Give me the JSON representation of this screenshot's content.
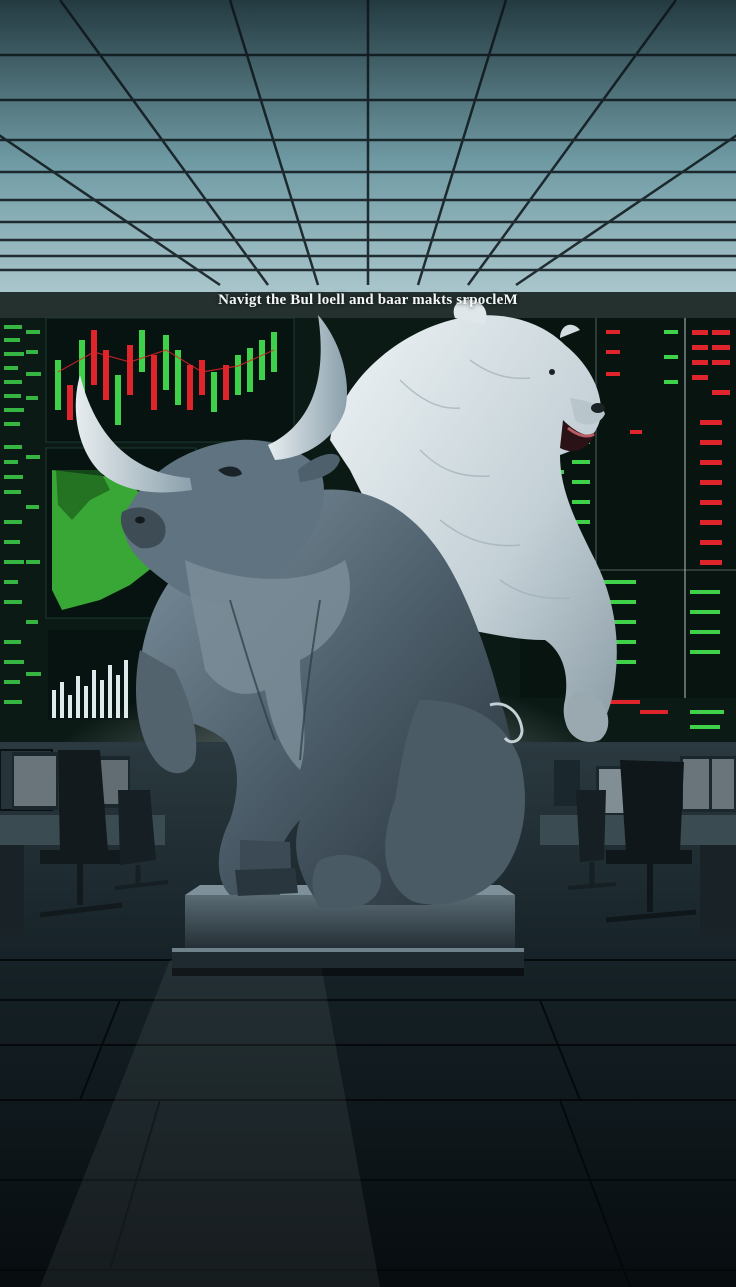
{
  "scene": {
    "banner_text": "Navigt the Bul loell and baar makts srpocleM",
    "subjects": [
      "bull-statue",
      "bear-statue"
    ],
    "setting": "trading floor with market data screens",
    "colors": {
      "ceiling": "#6f9aa3",
      "screen_bg": "#0c1a16",
      "ticker_green": "#3fd14a",
      "ticker_red": "#e0242b",
      "statue": "#5d6f7a",
      "bear": "#d7e0e3",
      "floor": "#10191d"
    }
  }
}
